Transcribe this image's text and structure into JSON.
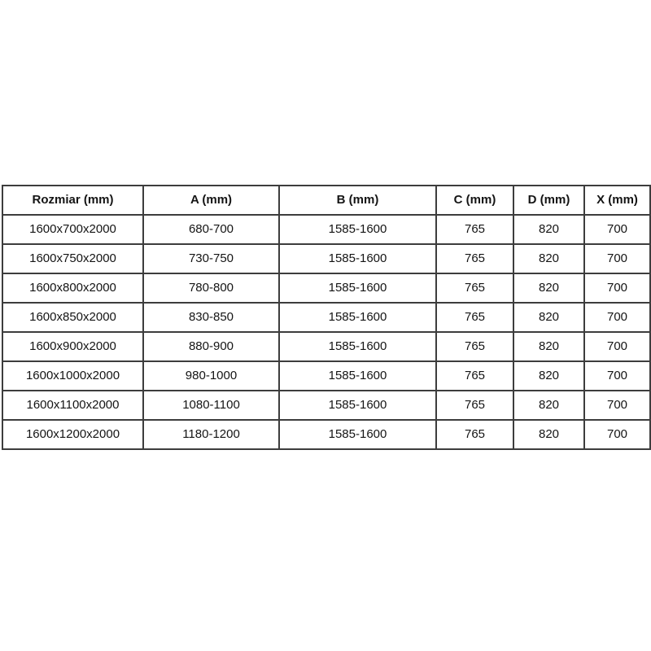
{
  "page": {
    "background_color": "#ffffff",
    "border_color": "#3d3d3d",
    "text_color": "#141414"
  },
  "table": {
    "columns": [
      "Rozmiar (mm)",
      "A (mm)",
      "B (mm)",
      "C (mm)",
      "D (mm)",
      "X (mm)"
    ],
    "rows": [
      [
        "1600x700x2000",
        "680-700",
        "1585-1600",
        "765",
        "820",
        "700"
      ],
      [
        "1600x750x2000",
        "730-750",
        "1585-1600",
        "765",
        "820",
        "700"
      ],
      [
        "1600x800x2000",
        "780-800",
        "1585-1600",
        "765",
        "820",
        "700"
      ],
      [
        "1600x850x2000",
        "830-850",
        "1585-1600",
        "765",
        "820",
        "700"
      ],
      [
        "1600x900x2000",
        "880-900",
        "1585-1600",
        "765",
        "820",
        "700"
      ],
      [
        "1600x1000x2000",
        "980-1000",
        "1585-1600",
        "765",
        "820",
        "700"
      ],
      [
        "1600x1100x2000",
        "1080-1100",
        "1585-1600",
        "765",
        "820",
        "700"
      ],
      [
        "1600x1200x2000",
        "1180-1200",
        "1585-1600",
        "765",
        "820",
        "700"
      ]
    ]
  }
}
